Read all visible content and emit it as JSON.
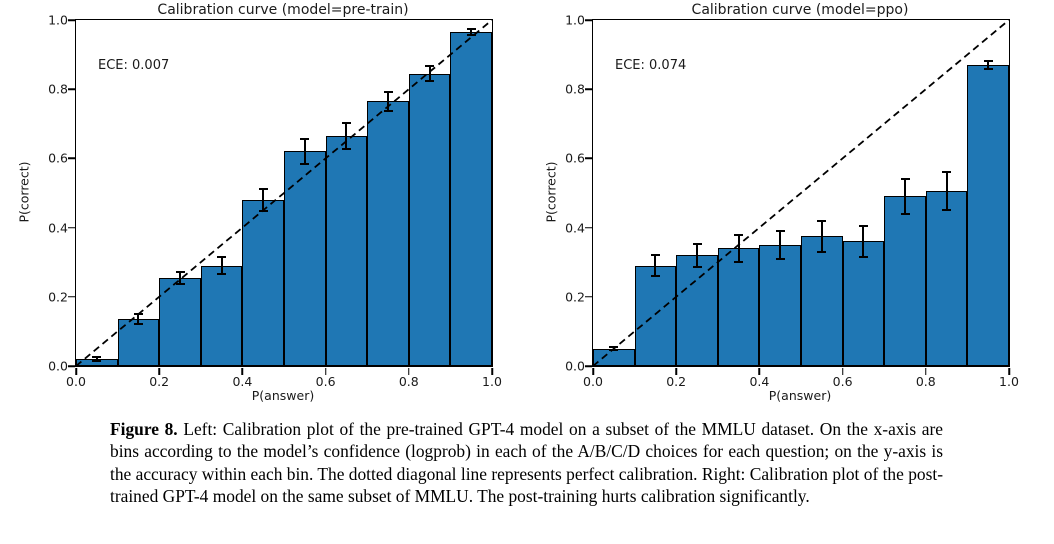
{
  "figure": {
    "caption_label": "Figure 8.",
    "caption_text": "Left: Calibration plot of the pre-trained GPT-4 model on a subset of the MMLU dataset. On the x-axis are bins according to the model’s confidence (logprob) in each of the A/B/C/D choices for each question; on the y-axis is the accuracy within each bin. The dotted diagonal line represents perfect calibration. Right: Calibration plot of the post-trained GPT-4 model on the same subset of MMLU. The post-training hurts calibration significantly."
  },
  "colors": {
    "bar_fill": "#1f77b4",
    "bar_edge": "#000000",
    "diagonal_line": "#000000",
    "text": "#1a1a1a"
  },
  "chart_data": [
    {
      "type": "bar",
      "title": "Calibration curve (model=pre-train)",
      "annotation": "ECE: 0.007",
      "xlabel": "P(answer)",
      "ylabel": "P(correct)",
      "xlim": [
        0.0,
        1.0
      ],
      "ylim": [
        0.0,
        1.0
      ],
      "x_ticks": [
        0.0,
        0.2,
        0.4,
        0.6,
        0.8,
        1.0
      ],
      "y_ticks": [
        0.0,
        0.2,
        0.4,
        0.6,
        0.8,
        1.0
      ],
      "bin_edges": [
        0.0,
        0.1,
        0.2,
        0.3,
        0.4,
        0.5,
        0.6,
        0.7,
        0.8,
        0.9,
        1.0
      ],
      "values": [
        0.02,
        0.135,
        0.255,
        0.29,
        0.48,
        0.62,
        0.665,
        0.765,
        0.845,
        0.965
      ],
      "errors": [
        0.005,
        0.015,
        0.018,
        0.025,
        0.032,
        0.035,
        0.037,
        0.028,
        0.022,
        0.008
      ],
      "diagonal_reference_line": true,
      "grid": false,
      "legend": false
    },
    {
      "type": "bar",
      "title": "Calibration curve (model=ppo)",
      "annotation": "ECE: 0.074",
      "xlabel": "P(answer)",
      "ylabel": "P(correct)",
      "xlim": [
        0.0,
        1.0
      ],
      "ylim": [
        0.0,
        1.0
      ],
      "x_ticks": [
        0.0,
        0.2,
        0.4,
        0.6,
        0.8,
        1.0
      ],
      "y_ticks": [
        0.0,
        0.2,
        0.4,
        0.6,
        0.8,
        1.0
      ],
      "bin_edges": [
        0.0,
        0.1,
        0.2,
        0.3,
        0.4,
        0.5,
        0.6,
        0.7,
        0.8,
        0.9,
        1.0
      ],
      "values": [
        0.05,
        0.29,
        0.32,
        0.34,
        0.35,
        0.375,
        0.36,
        0.49,
        0.505,
        0.87
      ],
      "errors": [
        0.004,
        0.03,
        0.033,
        0.038,
        0.04,
        0.045,
        0.045,
        0.05,
        0.055,
        0.012
      ],
      "diagonal_reference_line": true,
      "grid": false,
      "legend": false
    }
  ]
}
